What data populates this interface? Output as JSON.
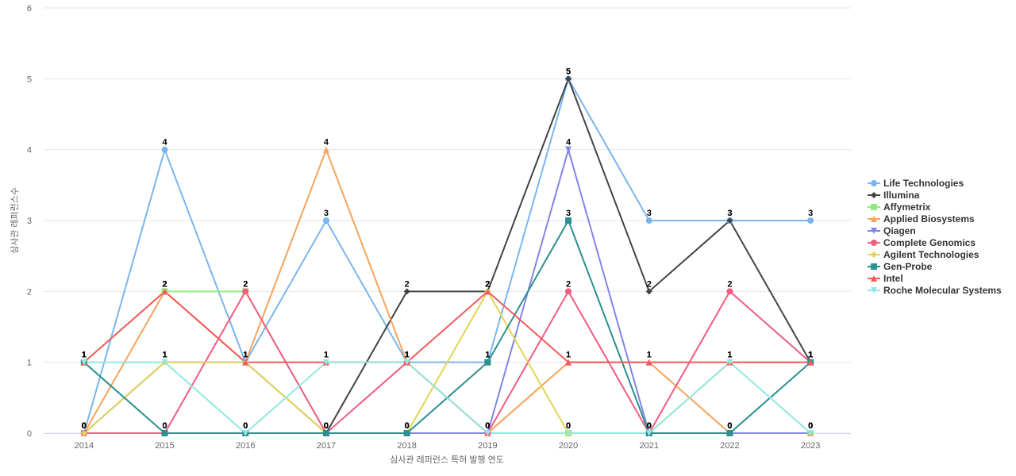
{
  "chart_data": {
    "type": "line",
    "x_label": "심사관 레퍼런스 특허 발행 연도",
    "y_label": "심사관 레퍼런스수",
    "categories": [
      "2014",
      "2015",
      "2016",
      "2017",
      "2018",
      "2019",
      "2020",
      "2021",
      "2022",
      "2023"
    ],
    "ylim": [
      0,
      6
    ],
    "yticks": [
      0,
      1,
      2,
      3,
      4,
      5,
      6
    ],
    "grid": true,
    "legend": "right",
    "series": [
      {
        "name": "Life Technologies",
        "color": "#7cb5ec",
        "marker": "circle",
        "values": [
          0,
          4,
          1,
          3,
          1,
          1,
          5,
          3,
          3,
          3
        ]
      },
      {
        "name": "Illumina",
        "color": "#434348",
        "marker": "diamond",
        "values": [
          0,
          0,
          0,
          0,
          2,
          2,
          5,
          2,
          3,
          1
        ]
      },
      {
        "name": "Affymetrix",
        "color": "#90ed7d",
        "marker": "square",
        "values": [
          1,
          2,
          2,
          0,
          0,
          0,
          0,
          0,
          0,
          0
        ]
      },
      {
        "name": "Applied Biosystems",
        "color": "#f7a35c",
        "marker": "triangle",
        "values": [
          0,
          2,
          1,
          4,
          1,
          0,
          1,
          1,
          0,
          0
        ]
      },
      {
        "name": "Qiagen",
        "color": "#8085e9",
        "marker": "triangle-down",
        "values": [
          0,
          1,
          1,
          0,
          0,
          0,
          4,
          0,
          0,
          0
        ]
      },
      {
        "name": "Complete Genomics",
        "color": "#f15c80",
        "marker": "circle",
        "values": [
          0,
          0,
          2,
          0,
          1,
          0,
          2,
          0,
          2,
          1
        ]
      },
      {
        "name": "Agilent Technologies",
        "color": "#e4d354",
        "marker": "diamond",
        "values": [
          0,
          1,
          1,
          0,
          0,
          2,
          0,
          0,
          1,
          1
        ]
      },
      {
        "name": "Gen-Probe",
        "color": "#2b908f",
        "marker": "square",
        "values": [
          1,
          0,
          0,
          0,
          0,
          1,
          3,
          0,
          0,
          1
        ]
      },
      {
        "name": "Intel",
        "color": "#f45b5b",
        "marker": "triangle",
        "values": [
          1,
          2,
          1,
          1,
          1,
          2,
          1,
          1,
          1,
          1
        ]
      },
      {
        "name": "Roche Molecular Systems",
        "color": "#91e8e1",
        "marker": "triangle-down",
        "values": [
          1,
          1,
          0,
          1,
          1,
          0,
          0,
          0,
          1,
          0
        ]
      }
    ]
  }
}
